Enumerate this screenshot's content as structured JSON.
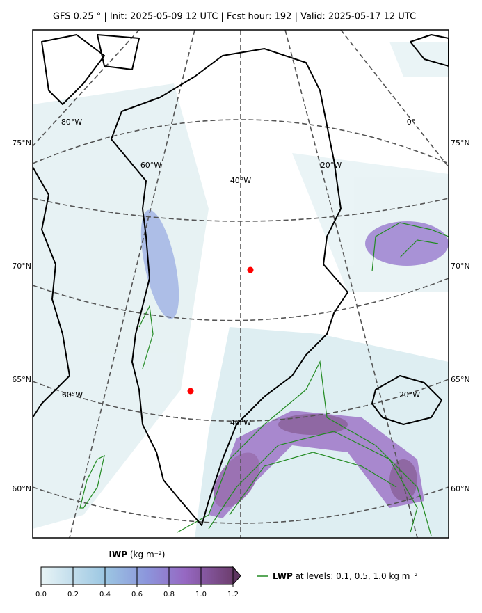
{
  "header": {
    "title": "GFS 0.25 °  |  Init: 2025-05-09 12 UTC  |  Fcst hour: 192  |  Valid: 2025-05-17 12 UTC"
  },
  "map": {
    "lat_labels_left": [
      "75°N",
      "70°N",
      "65°N",
      "60°N"
    ],
    "lat_labels_right": [
      "75°N",
      "70°N",
      "65°N",
      "60°N"
    ],
    "lon_labels": [
      "80°W",
      "0°",
      "60°W",
      "20°W",
      "40°W",
      "60°W",
      "20°W",
      "40°W"
    ]
  },
  "colorbar": {
    "label": "IWP",
    "unit": "(kg m⁻²)",
    "ticks": [
      {
        "value": 0,
        "label": "0.0"
      },
      {
        "value": 0.2,
        "label": "0.2"
      },
      {
        "value": 0.4,
        "label": "0.4"
      },
      {
        "value": 0.6,
        "label": "0.6"
      },
      {
        "value": 0.8,
        "label": "0.8"
      },
      {
        "value": 1,
        "label": "1.0"
      },
      {
        "value": 1.2,
        "label": "1.2"
      }
    ]
  },
  "legend": {
    "label": "LWP",
    "text": "at levels: 0.1, 0.5, 1.0  kg m⁻²"
  }
}
